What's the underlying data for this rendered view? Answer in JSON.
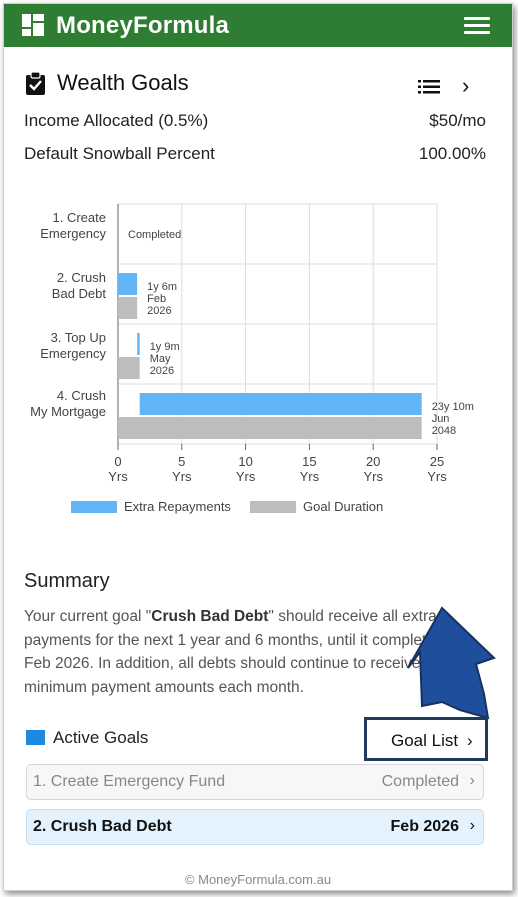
{
  "app": {
    "brand": "MoneyFormula",
    "footer": "© MoneyFormula.com.au"
  },
  "header": {
    "title": "Wealth Goals"
  },
  "settings": [
    {
      "label": "Income Allocated (0.5%)",
      "value": "$50/mo"
    },
    {
      "label": "Default Snowball Percent",
      "value": "100.00%"
    }
  ],
  "chart_data": {
    "type": "bar",
    "orientation": "horizontal",
    "categories": [
      [
        "1. Create",
        "Emergency"
      ],
      [
        "2. Crush",
        "Bad Debt"
      ],
      [
        "3. Top Up",
        "Emergency"
      ],
      [
        "4. Crush",
        "My Mortgage"
      ]
    ],
    "series": [
      {
        "name": "Extra Repayments",
        "color": "#64b5f6",
        "values": [
          [
            0,
            0
          ],
          [
            0,
            1.5
          ],
          [
            1.5,
            1.7
          ],
          [
            1.7,
            23.8
          ]
        ]
      },
      {
        "name": "Goal Duration",
        "color": "#bdbdbd",
        "values": [
          0,
          1.5,
          1.7,
          23.8
        ]
      }
    ],
    "bar_labels": [
      [
        "Completed"
      ],
      [
        "1y 6m",
        "Feb",
        "2026"
      ],
      [
        "1y 9m",
        "May",
        "2026"
      ],
      [
        "23y 10m",
        "Jun",
        "2048"
      ]
    ],
    "xticks": [
      [
        "0",
        "Yrs"
      ],
      [
        "5",
        "Yrs"
      ],
      [
        "10",
        "Yrs"
      ],
      [
        "15",
        "Yrs"
      ],
      [
        "20",
        "Yrs"
      ],
      [
        "25",
        "Yrs"
      ]
    ],
    "xlim": [
      0,
      25
    ],
    "grid": true,
    "legend_position": "bottom"
  },
  "summary": {
    "heading": "Summary",
    "text_1": "Your current goal \"",
    "goal_name": "Crush Bad Debt",
    "text_2": "\" should receive all extra payments for the next 1 year and 6 months, until it completes on Feb 2026. In addition, all debts should continue to receive their minimum payment amounts each month."
  },
  "active_goals": {
    "label": "Active Goals",
    "goal_list_button": "Goal List",
    "chevron": "›",
    "items": [
      {
        "name": "1. Create Emergency Fund",
        "status": "Completed"
      },
      {
        "name": "2. Crush Bad Debt",
        "status": "Feb 2026"
      }
    ]
  },
  "icons": {
    "logo": "dashboard-icon",
    "menu": "hamburger-menu-icon",
    "title": "clipboard-check-icon",
    "list": "list-icon",
    "next": "chevron-right-icon",
    "annotation": "arrow-pointer"
  }
}
